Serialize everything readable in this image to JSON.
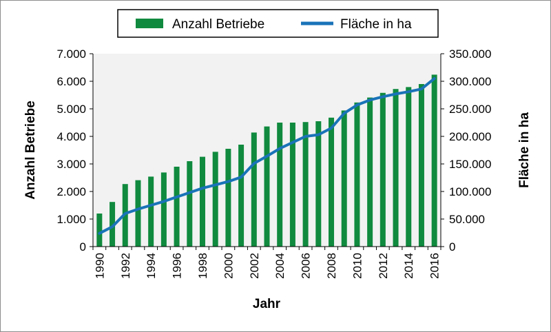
{
  "chart_data": {
    "type": "bar+line",
    "categories": [
      "1990",
      "1991",
      "1992",
      "1993",
      "1994",
      "1995",
      "1996",
      "1997",
      "1998",
      "1999",
      "2000",
      "2001",
      "2002",
      "2003",
      "2004",
      "2005",
      "2006",
      "2007",
      "2008",
      "2009",
      "2010",
      "2011",
      "2012",
      "2013",
      "2014",
      "2015",
      "2016"
    ],
    "x_tick_labels": [
      "1990",
      "1992",
      "1994",
      "1996",
      "1998",
      "2000",
      "2002",
      "2004",
      "2006",
      "2008",
      "2010",
      "2012",
      "2014",
      "2016"
    ],
    "series": [
      {
        "name": "Anzahl Betriebe",
        "kind": "bar",
        "axis": "left",
        "color": "#108a3e",
        "values": [
          1200,
          1620,
          2270,
          2410,
          2540,
          2690,
          2900,
          3100,
          3260,
          3440,
          3550,
          3700,
          4140,
          4360,
          4500,
          4500,
          4520,
          4550,
          4680,
          4940,
          5230,
          5410,
          5580,
          5720,
          5790,
          5900,
          6240
        ]
      },
      {
        "name": "Fläche in ha",
        "kind": "line",
        "axis": "right",
        "color": "#1a73b8",
        "values": [
          24000,
          36000,
          60000,
          68000,
          75000,
          82000,
          90000,
          98000,
          106000,
          112000,
          118000,
          126000,
          151000,
          164000,
          178000,
          189000,
          200000,
          203000,
          215000,
          242000,
          257000,
          266000,
          272000,
          277000,
          281000,
          286000,
          305000
        ]
      }
    ],
    "xlabel": "Jahr",
    "ylabel": "Anzahl Betriebe",
    "y2label": "Fläche in ha",
    "ylim": [
      0,
      7000
    ],
    "y2lim": [
      0,
      350000
    ],
    "y_ticks": [
      "0",
      "1.000",
      "2.000",
      "3.000",
      "4.000",
      "5.000",
      "6.000",
      "7.000"
    ],
    "y2_ticks": [
      "0",
      "50.000",
      "100.000",
      "150.000",
      "200.000",
      "250.000",
      "300.000",
      "350.000"
    ],
    "legend": [
      "Anzahl Betriebe",
      "Fläche in ha"
    ],
    "legend_position": "top-center",
    "plot_background": "#f2f2f2"
  }
}
